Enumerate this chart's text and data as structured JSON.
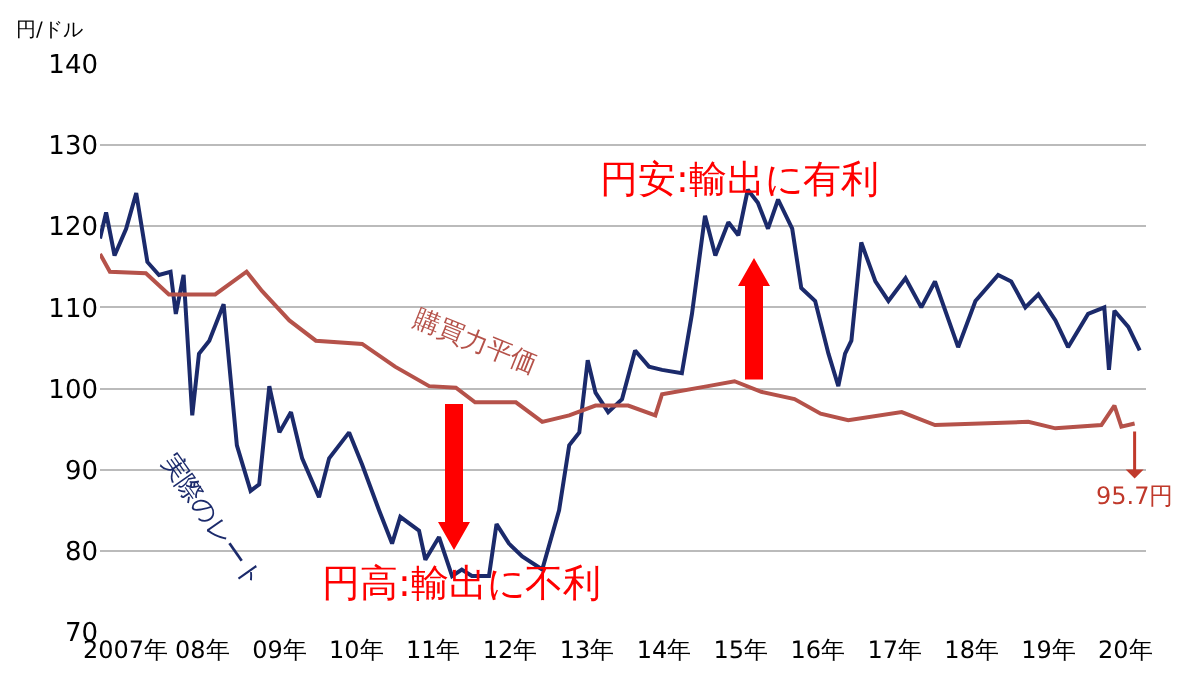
{
  "chart_data": {
    "type": "line",
    "ylabel": "円/ドル",
    "xlim": [
      "2006-09-02",
      "2020-04-08"
    ],
    "xticks": [
      {
        "value": "2007",
        "label": "2007年"
      },
      {
        "value": "2008",
        "label": "08年"
      },
      {
        "value": "2009",
        "label": "09年"
      },
      {
        "value": "2010",
        "label": "10年"
      },
      {
        "value": "2011",
        "label": "11年"
      },
      {
        "value": "2012",
        "label": "12年"
      },
      {
        "value": "2013",
        "label": "13年"
      },
      {
        "value": "2014",
        "label": "14年"
      },
      {
        "value": "2015",
        "label": "15年"
      },
      {
        "value": "2016",
        "label": "16年"
      },
      {
        "value": "2017",
        "label": "17年"
      },
      {
        "value": "2018",
        "label": "18年"
      },
      {
        "value": "2019",
        "label": "19年"
      },
      {
        "value": "2020",
        "label": "20年"
      }
    ],
    "ylim": [
      70,
      140
    ],
    "yticks": [
      70,
      80,
      90,
      100,
      110,
      120,
      130,
      140
    ],
    "grid": "y",
    "legend": false,
    "marker": "none",
    "line_style": "solid",
    "series": [
      {
        "name": "実際のレート",
        "color": "#1b2a6b",
        "x": [
          "2006-09-02",
          "2006-10-01",
          "2006-11-10",
          "2007-01-04",
          "2007-02-21",
          "2007-04-15",
          "2007-06-09",
          "2007-08-03",
          "2007-08-28",
          "2007-10-04",
          "2007-11-14",
          "2007-12-16",
          "2008-02-03",
          "2008-04-11",
          "2008-06-13",
          "2008-08-17",
          "2008-09-27",
          "2008-11-14",
          "2009-01-01",
          "2009-02-25",
          "2009-04-19",
          "2009-07-08",
          "2009-08-25",
          "2009-11-28",
          "2010-01-29",
          "2010-04-19",
          "2010-06-20",
          "2010-07-29",
          "2010-10-26",
          "2010-11-25",
          "2011-01-29",
          "2011-04-01",
          "2011-05-17",
          "2011-07-04",
          "2011-09-23",
          "2011-10-29",
          "2011-12-27",
          "2012-02-28",
          "2012-06-02",
          "2012-08-21",
          "2012-10-08",
          "2012-11-25",
          "2013-01-04",
          "2013-02-10",
          "2013-04-11",
          "2013-06-16",
          "2013-08-17",
          "2013-10-22",
          "2013-12-23",
          "2014-03-27",
          "2014-05-14",
          "2014-07-15",
          "2014-09-02",
          "2014-11-03",
          "2014-12-20",
          "2015-02-03",
          "2015-03-23",
          "2015-05-10",
          "2015-06-27",
          "2015-09-02",
          "2015-10-15",
          "2015-12-20",
          "2016-02-21",
          "2016-04-08",
          "2016-05-10",
          "2016-06-09",
          "2016-07-26",
          "2016-10-01",
          "2016-12-02",
          "2017-02-21",
          "2017-05-07",
          "2017-07-11",
          "2017-10-29",
          "2018-01-19",
          "2018-05-07",
          "2018-07-08",
          "2018-09-13",
          "2018-11-14",
          "2019-02-03",
          "2019-04-04",
          "2019-07-08",
          "2019-09-23",
          "2019-10-15",
          "2019-11-10",
          "2020-01-15",
          "2020-03-09"
        ],
        "values": [
          118.5,
          121.7,
          116.4,
          119.7,
          124.1,
          115.6,
          114.0,
          114.4,
          109.2,
          114.0,
          96.7,
          104.3,
          105.9,
          110.4,
          93.0,
          87.4,
          88.2,
          100.3,
          94.6,
          97.1,
          91.4,
          86.6,
          91.4,
          94.6,
          90.6,
          85.0,
          80.9,
          84.2,
          82.5,
          78.9,
          81.7,
          76.9,
          77.7,
          76.9,
          76.9,
          83.3,
          80.9,
          79.3,
          77.7,
          85.0,
          93.0,
          94.6,
          103.5,
          99.5,
          97.1,
          98.7,
          104.7,
          102.7,
          102.3,
          101.9,
          109.2,
          121.3,
          116.4,
          120.5,
          118.9,
          124.5,
          122.9,
          119.7,
          123.3,
          119.7,
          112.4,
          110.8,
          104.3,
          100.3,
          104.3,
          105.9,
          118.0,
          113.2,
          110.8,
          113.6,
          110.0,
          113.2,
          105.1,
          110.8,
          114.0,
          113.2,
          110.0,
          111.6,
          108.4,
          105.1,
          109.2,
          110.0,
          102.3,
          109.6,
          107.6,
          104.7
        ]
      },
      {
        "name": "購買力平価",
        "color": "#b5524a",
        "x": [
          "2006-09-02",
          "2006-10-19",
          "2007-04-08",
          "2007-07-26",
          "2008-03-02",
          "2008-07-29",
          "2008-10-11",
          "2009-02-17",
          "2009-06-23",
          "2010-01-29",
          "2010-07-04",
          "2010-12-13",
          "2011-04-19",
          "2011-07-19",
          "2012-01-29",
          "2012-06-02",
          "2012-10-08",
          "2013-02-10",
          "2013-07-15",
          "2013-11-21",
          "2013-12-23",
          "2014-07-29",
          "2014-12-02",
          "2015-04-08",
          "2015-09-13",
          "2016-01-15",
          "2016-05-25",
          "2017-02-03",
          "2017-07-11",
          "2018-09-27",
          "2019-02-03",
          "2019-09-09",
          "2019-11-10",
          "2019-12-13",
          "2020-02-14"
        ],
        "values": [
          116.6,
          114.4,
          114.2,
          111.6,
          111.6,
          114.4,
          112.0,
          108.4,
          105.9,
          105.5,
          102.7,
          100.3,
          100.1,
          98.3,
          98.3,
          95.9,
          96.7,
          97.9,
          97.9,
          96.7,
          99.3,
          100.3,
          100.9,
          99.6,
          98.7,
          96.9,
          96.1,
          97.1,
          95.5,
          95.9,
          95.1,
          95.5,
          97.9,
          95.3,
          95.7
        ]
      }
    ],
    "annotations": [
      "円安:輸出に有利",
      "円高:輸出に不利",
      {
        "text": "95.7円",
        "x": "2020-02-14",
        "y": 95.7
      }
    ]
  }
}
